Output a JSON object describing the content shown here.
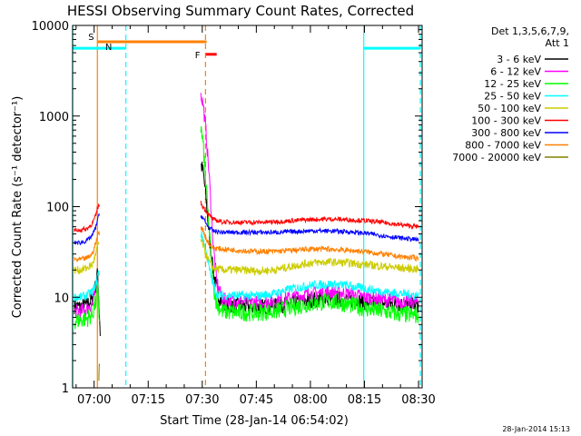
{
  "chart_data": {
    "type": "line",
    "title": "HESSI Observing Summary Count Rates, Corrected",
    "xlabel": "Start Time (28-Jan-14 06:54:02)",
    "ylabel": "Corrected Count Rate (s⁻¹ detector⁻¹)",
    "yscale": "log",
    "ylim": [
      1,
      10000
    ],
    "xlim": [
      "06:54:02",
      "08:31:00"
    ],
    "xtick_labels": [
      "07:00",
      "07:15",
      "07:30",
      "07:45",
      "08:00",
      "08:15",
      "08:30"
    ],
    "xtick_minutes": [
      420,
      435,
      450,
      465,
      480,
      495,
      510
    ],
    "ytick_labels": [
      "1",
      "10",
      "100",
      "1000",
      "10000"
    ],
    "ytick_values": [
      1,
      10,
      100,
      1000,
      10000
    ],
    "legend_header": [
      "Det 1,3,5,6,7,9,",
      "Att 1"
    ],
    "legend_position": "right",
    "timestamp": "28-Jan-2014 15:13",
    "series": [
      {
        "name": "3 - 6 keV",
        "color": "#000000",
        "points": [
          [
            414.5,
            8.0
          ],
          [
            416,
            7.8
          ],
          [
            418,
            8.3
          ],
          [
            419.5,
            9.5
          ],
          [
            420.5,
            14
          ],
          [
            421,
            19
          ],
          [
            421.5,
            6
          ],
          [
            421.7,
            4
          ]
        ],
        "points2": [
          [
            449.6,
            290
          ],
          [
            450.2,
            250
          ],
          [
            451,
            130
          ],
          [
            452,
            45
          ],
          [
            453,
            20
          ],
          [
            454,
            12
          ],
          [
            455.5,
            8.5
          ],
          [
            460,
            8
          ],
          [
            465,
            7.8
          ],
          [
            470,
            8
          ],
          [
            475,
            8.6
          ],
          [
            480,
            9.3
          ],
          [
            485,
            9.8
          ],
          [
            490,
            9.5
          ],
          [
            495,
            8.8
          ],
          [
            500,
            8.5
          ],
          [
            505,
            8.3
          ],
          [
            510,
            8.2
          ]
        ]
      },
      {
        "name": "6 - 12 keV",
        "color": "#ff00ff",
        "points": [
          [
            414.5,
            7.0
          ],
          [
            416,
            7.0
          ],
          [
            418,
            7.5
          ],
          [
            419.5,
            8.5
          ],
          [
            420.5,
            12
          ],
          [
            421,
            17
          ],
          [
            421.5,
            6.5
          ]
        ],
        "points2": [
          [
            449.6,
            1700
          ],
          [
            450.2,
            1400
          ],
          [
            451,
            700
          ],
          [
            452,
            200
          ],
          [
            453,
            40
          ],
          [
            454,
            15
          ],
          [
            455.5,
            9.5
          ],
          [
            460,
            9
          ],
          [
            465,
            8.8
          ],
          [
            470,
            9
          ],
          [
            475,
            10
          ],
          [
            480,
            11
          ],
          [
            485,
            11.5
          ],
          [
            490,
            11
          ],
          [
            495,
            10
          ],
          [
            500,
            9.5
          ],
          [
            505,
            9
          ],
          [
            510,
            8.8
          ]
        ]
      },
      {
        "name": "12 - 25 keV",
        "color": "#00ff00",
        "points": [
          [
            414.5,
            5.5
          ],
          [
            416,
            5.6
          ],
          [
            418,
            5.8
          ],
          [
            419.5,
            6.5
          ],
          [
            420.5,
            9
          ],
          [
            421,
            13
          ],
          [
            421.5,
            5
          ]
        ],
        "points2": [
          [
            449.6,
            750
          ],
          [
            450.2,
            500
          ],
          [
            451,
            180
          ],
          [
            452,
            50
          ],
          [
            453,
            14
          ],
          [
            454,
            8.5
          ],
          [
            455.5,
            7
          ],
          [
            460,
            6.8
          ],
          [
            465,
            6.8
          ],
          [
            470,
            7
          ],
          [
            475,
            7.8
          ],
          [
            480,
            8.5
          ],
          [
            485,
            9
          ],
          [
            490,
            8.5
          ],
          [
            495,
            7.5
          ],
          [
            500,
            7
          ],
          [
            505,
            6.5
          ],
          [
            510,
            6.3
          ]
        ]
      },
      {
        "name": "25 - 50 keV",
        "color": "#00ffff",
        "points": [
          [
            414.5,
            10
          ],
          [
            416,
            10
          ],
          [
            418,
            10.5
          ],
          [
            419.5,
            11.5
          ],
          [
            420.5,
            14
          ],
          [
            421,
            18
          ],
          [
            421.5,
            19
          ]
        ],
        "points2": [
          [
            449.6,
            50
          ],
          [
            450.2,
            45
          ],
          [
            451,
            32
          ],
          [
            452,
            20
          ],
          [
            453,
            14
          ],
          [
            454,
            11
          ],
          [
            455.5,
            10.5
          ],
          [
            460,
            10.5
          ],
          [
            465,
            10.3
          ],
          [
            470,
            11
          ],
          [
            475,
            12.5
          ],
          [
            480,
            13.5
          ],
          [
            485,
            14
          ],
          [
            490,
            13.5
          ],
          [
            495,
            12.5
          ],
          [
            500,
            11.5
          ],
          [
            505,
            11
          ],
          [
            510,
            10.5
          ]
        ]
      },
      {
        "name": "50 - 100 keV",
        "color": "#cccc00",
        "points": [
          [
            414.5,
            20
          ],
          [
            416,
            20
          ],
          [
            418,
            21
          ],
          [
            419.5,
            23
          ],
          [
            420.5,
            30
          ],
          [
            421,
            38
          ],
          [
            421.5,
            40
          ]
        ],
        "points2": [
          [
            449.6,
            42
          ],
          [
            450.2,
            38
          ],
          [
            451,
            30
          ],
          [
            452,
            24
          ],
          [
            453,
            21
          ],
          [
            455.5,
            20
          ],
          [
            460,
            20
          ],
          [
            465,
            19.5
          ],
          [
            470,
            20
          ],
          [
            475,
            22
          ],
          [
            480,
            24
          ],
          [
            485,
            24.5
          ],
          [
            490,
            24
          ],
          [
            495,
            23
          ],
          [
            500,
            22
          ],
          [
            505,
            21
          ],
          [
            510,
            20.5
          ]
        ]
      },
      {
        "name": "100 - 300 keV",
        "color": "#ff0000",
        "points": [
          [
            414.5,
            55
          ],
          [
            416,
            55
          ],
          [
            418,
            57
          ],
          [
            419.5,
            65
          ],
          [
            420.5,
            80
          ],
          [
            421,
            100
          ],
          [
            421.5,
            105
          ]
        ],
        "points2": [
          [
            449.6,
            110
          ],
          [
            450.2,
            100
          ],
          [
            451,
            90
          ],
          [
            452,
            80
          ],
          [
            453,
            72
          ],
          [
            455.5,
            68
          ],
          [
            460,
            67
          ],
          [
            465,
            67
          ],
          [
            470,
            68
          ],
          [
            475,
            70
          ],
          [
            480,
            72
          ],
          [
            485,
            73
          ],
          [
            490,
            72
          ],
          [
            495,
            70
          ],
          [
            500,
            67
          ],
          [
            505,
            63
          ],
          [
            510,
            60
          ]
        ]
      },
      {
        "name": "300 - 800 keV",
        "color": "#0000ff",
        "points": [
          [
            414.5,
            40
          ],
          [
            416,
            40
          ],
          [
            418,
            42
          ],
          [
            419.5,
            48
          ],
          [
            420.5,
            60
          ],
          [
            421,
            75
          ],
          [
            421.5,
            80
          ]
        ],
        "points2": [
          [
            449.6,
            80
          ],
          [
            450.2,
            75
          ],
          [
            451,
            65
          ],
          [
            452,
            58
          ],
          [
            453,
            54
          ],
          [
            455.5,
            52
          ],
          [
            460,
            52
          ],
          [
            465,
            52
          ],
          [
            470,
            52
          ],
          [
            475,
            53
          ],
          [
            480,
            54
          ],
          [
            485,
            54
          ],
          [
            490,
            53
          ],
          [
            495,
            51
          ],
          [
            500,
            48
          ],
          [
            505,
            45
          ],
          [
            510,
            43
          ]
        ]
      },
      {
        "name": "800 - 7000 keV",
        "color": "#ff8000",
        "points": [
          [
            414.5,
            26
          ],
          [
            416,
            26
          ],
          [
            418,
            27
          ],
          [
            419.5,
            30
          ],
          [
            420.5,
            40
          ],
          [
            421,
            50
          ],
          [
            421.5,
            52
          ]
        ],
        "points2": [
          [
            449.6,
            60
          ],
          [
            450.2,
            55
          ],
          [
            451,
            45
          ],
          [
            452,
            38
          ],
          [
            453,
            35
          ],
          [
            455.5,
            34
          ],
          [
            460,
            33
          ],
          [
            465,
            32
          ],
          [
            470,
            32
          ],
          [
            475,
            33
          ],
          [
            480,
            34
          ],
          [
            485,
            34
          ],
          [
            490,
            33
          ],
          [
            495,
            32
          ],
          [
            500,
            30
          ],
          [
            505,
            28
          ],
          [
            510,
            27
          ]
        ]
      },
      {
        "name": "7000 - 20000 keV",
        "color": "#808000",
        "points": [
          [
            421.3,
            1.2
          ],
          [
            421.4,
            1.8
          ],
          [
            421.5,
            2.0
          ],
          [
            421.6,
            1.5
          ]
        ],
        "points2": []
      }
    ],
    "annotations": [
      {
        "label": "S",
        "color": "#ff8000",
        "x_start": 420.9,
        "x_end": 451.2,
        "y": 6600
      },
      {
        "label": "N",
        "color": "#00ffff",
        "x_start": 414.0,
        "x_end": 428.8,
        "y": 5600
      },
      {
        "label": "F",
        "color": "#ff0000",
        "x_start": 451.0,
        "x_end": 454.0,
        "y": 4800
      },
      {
        "label": "",
        "color": "#00ffff",
        "x_start": 494.8,
        "x_end": 510.5,
        "y": 5600
      }
    ],
    "vlines": [
      {
        "x": 414.0,
        "color": "#00ffff",
        "dashed": false
      },
      {
        "x": 420.9,
        "color": "#ff8000",
        "dashed": false
      },
      {
        "x": 428.8,
        "color": "#00ffff",
        "dashed": true
      },
      {
        "x": 450.9,
        "color": "#ff8000",
        "dashed": true
      },
      {
        "x": 494.8,
        "color": "#00ffff",
        "dashed": false
      },
      {
        "x": 510.5,
        "color": "#00ffff",
        "dashed": true
      }
    ]
  }
}
